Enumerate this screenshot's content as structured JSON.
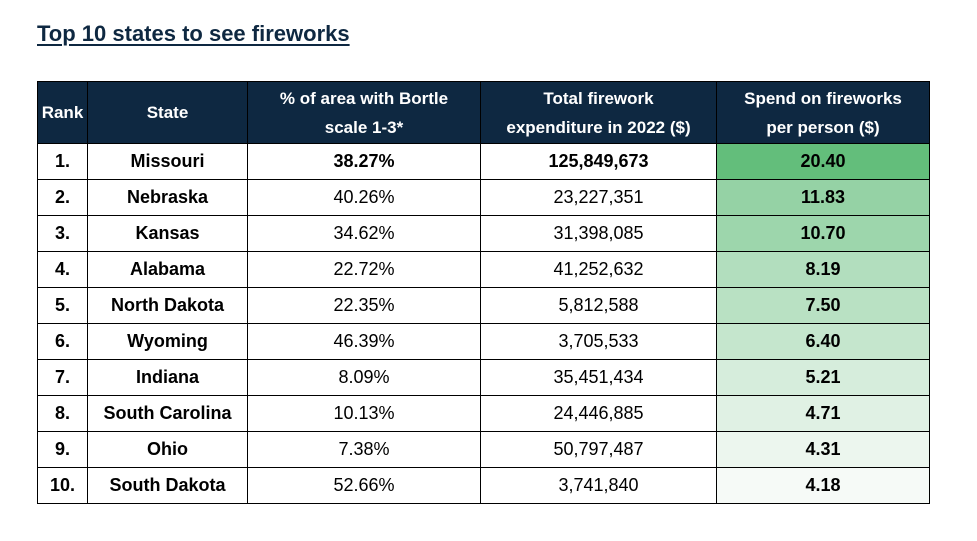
{
  "title": "Top 10 states to see fireworks",
  "headers": {
    "rank": "Rank",
    "state": "State",
    "bortle_line1": "% of area with Bortle",
    "bortle_line2": "scale 1-3*",
    "expenditure_line1": "Total firework",
    "expenditure_line2": "expenditure in 2022 ($)",
    "spend_line1": "Spend on fireworks",
    "spend_line2": "per person ($)"
  },
  "rows": [
    {
      "rank": "1.",
      "state": "Missouri",
      "bortle": "38.27%",
      "expenditure": "125,849,673",
      "spend": "20.40"
    },
    {
      "rank": "2.",
      "state": "Nebraska",
      "bortle": "40.26%",
      "expenditure": "23,227,351",
      "spend": "11.83"
    },
    {
      "rank": "3.",
      "state": "Kansas",
      "bortle": "34.62%",
      "expenditure": "31,398,085",
      "spend": "10.70"
    },
    {
      "rank": "4.",
      "state": "Alabama",
      "bortle": "22.72%",
      "expenditure": "41,252,632",
      "spend": "8.19"
    },
    {
      "rank": "5.",
      "state": "North Dakota",
      "bortle": "22.35%",
      "expenditure": "5,812,588",
      "spend": "7.50"
    },
    {
      "rank": "6.",
      "state": "Wyoming",
      "bortle": "46.39%",
      "expenditure": "3,705,533",
      "spend": "6.40"
    },
    {
      "rank": "7.",
      "state": "Indiana",
      "bortle": "8.09%",
      "expenditure": "35,451,434",
      "spend": "5.21"
    },
    {
      "rank": "8.",
      "state": "South Carolina",
      "bortle": "10.13%",
      "expenditure": "24,446,885",
      "spend": "4.71"
    },
    {
      "rank": "9.",
      "state": "Ohio",
      "bortle": "7.38%",
      "expenditure": "50,797,487",
      "spend": "4.31"
    },
    {
      "rank": "10.",
      "state": "South Dakota",
      "bortle": "52.66%",
      "expenditure": "3,741,840",
      "spend": "4.18"
    }
  ],
  "colors": {
    "header_bg": "#0e2841",
    "header_text": "#ffffff",
    "title_text": "#0e2841",
    "heat_high": "#63be7b",
    "heat_low": "#f6faf7"
  }
}
